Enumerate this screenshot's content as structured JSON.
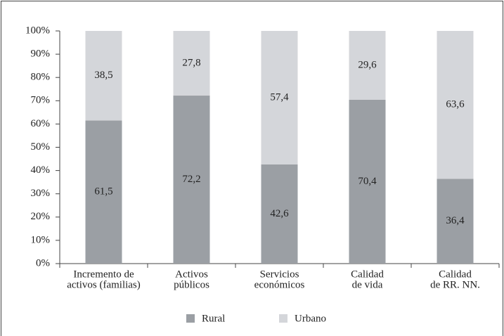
{
  "chart_data": {
    "type": "stacked_bar",
    "categories": [
      [
        "Incremento de",
        "activos (familias)"
      ],
      [
        "Activos",
        "públicos"
      ],
      [
        "Servicios",
        "económicos"
      ],
      [
        "Calidad",
        "de vida"
      ],
      [
        "Calidad",
        "de RR. NN."
      ]
    ],
    "series": [
      {
        "name": "Rural",
        "color": "#9b9fa4",
        "values": [
          61.5,
          72.2,
          42.6,
          70.4,
          36.4
        ],
        "value_labels": [
          "61,5",
          "72,2",
          "42,6",
          "70,4",
          "36,4"
        ]
      },
      {
        "name": "Urbano",
        "color": "#d4d6da",
        "values": [
          38.5,
          27.8,
          57.4,
          29.6,
          63.6
        ],
        "value_labels": [
          "38,5",
          "27,8",
          "57,4",
          "29,6",
          "63,6"
        ]
      }
    ],
    "ylim": [
      0,
      100
    ],
    "yticks": [
      {
        "value": 0,
        "label": "0%"
      },
      {
        "value": 10,
        "label": "10%"
      },
      {
        "value": 20,
        "label": "20%"
      },
      {
        "value": 30,
        "label": "30%"
      },
      {
        "value": 40,
        "label": "40%"
      },
      {
        "value": 50,
        "label": "50%"
      },
      {
        "value": 60,
        "label": "60%"
      },
      {
        "value": 70,
        "label": "70%"
      },
      {
        "value": 80,
        "label": "80%"
      },
      {
        "value": 90,
        "label": "90%"
      },
      {
        "value": 100,
        "label": "100%"
      }
    ],
    "legend": "bottom"
  }
}
